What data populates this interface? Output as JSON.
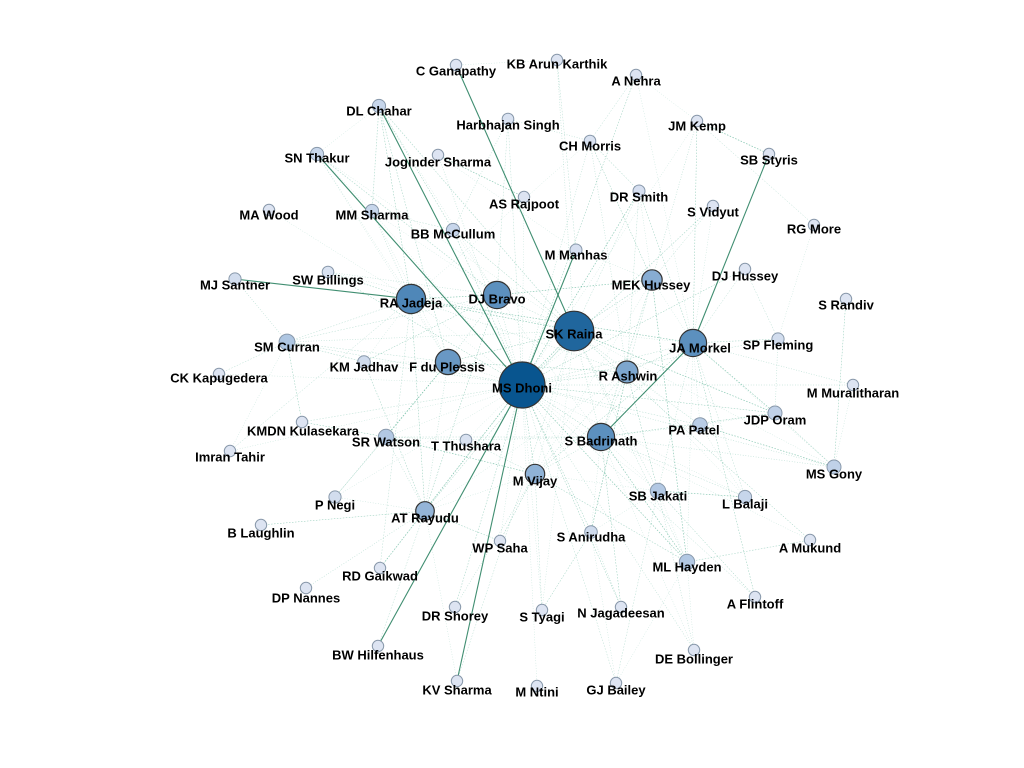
{
  "graph": {
    "colors": {
      "edge": "#2f9e7a",
      "edge_strong": "#1e7a58",
      "node_dark": "#08558f",
      "node_mid": "#4f87b8",
      "node_light": "#9cbadc",
      "node_pale": "#dde4f2",
      "label": "#000000",
      "background": "#ffffff"
    },
    "nodes": [
      {
        "id": "ms-dhoni",
        "label": "MS Dhoni",
        "weight": 1.0
      },
      {
        "id": "sk-raina",
        "label": "SK Raina",
        "weight": 0.85
      },
      {
        "id": "ra-jadeja",
        "label": "RA Jadeja",
        "weight": 0.6
      },
      {
        "id": "ja-morkel",
        "label": "JA Morkel",
        "weight": 0.55
      },
      {
        "id": "dj-bravo",
        "label": "DJ Bravo",
        "weight": 0.55
      },
      {
        "id": "s-badrinath",
        "label": "S Badrinath",
        "weight": 0.55
      },
      {
        "id": "f-du-plessis",
        "label": "F du Plessis",
        "weight": 0.5
      },
      {
        "id": "r-ashwin",
        "label": "R Ashwin",
        "weight": 0.42
      },
      {
        "id": "mek-hussey",
        "label": "MEK Hussey",
        "weight": 0.38
      },
      {
        "id": "m-vijay",
        "label": "M Vijay",
        "weight": 0.35
      },
      {
        "id": "at-rayudu",
        "label": "AT Rayudu",
        "weight": 0.33
      },
      {
        "id": "sm-curran",
        "label": "SM Curran",
        "weight": 0.25
      },
      {
        "id": "sb-jakati",
        "label": "SB Jakati",
        "weight": 0.24
      },
      {
        "id": "ml-hayden",
        "label": "ML Hayden",
        "weight": 0.24
      },
      {
        "id": "sr-watson",
        "label": "SR Watson",
        "weight": 0.24
      },
      {
        "id": "pa-patel",
        "label": "PA Patel",
        "weight": 0.22
      },
      {
        "id": "ms-gony",
        "label": "MS Gony",
        "weight": 0.2
      },
      {
        "id": "jdp-oram",
        "label": "JDP Oram",
        "weight": 0.2
      },
      {
        "id": "l-balaji",
        "label": "L Balaji",
        "weight": 0.18
      },
      {
        "id": "bb-mccullum",
        "label": "BB McCullum",
        "weight": 0.18
      },
      {
        "id": "mm-sharma",
        "label": "MM Sharma",
        "weight": 0.18
      },
      {
        "id": "dl-chahar",
        "label": "DL Chahar",
        "weight": 0.18
      },
      {
        "id": "sn-thakur",
        "label": "SN Thakur",
        "weight": 0.18
      },
      {
        "id": "s-anirudha",
        "label": "S Anirudha",
        "weight": 0.16
      },
      {
        "id": "km-jadhav",
        "label": "KM Jadhav",
        "weight": 0.16
      },
      {
        "id": "sp-fleming",
        "label": "SP Fleming",
        "weight": 0.15
      },
      {
        "id": "p-negi",
        "label": "P Negi",
        "weight": 0.15
      },
      {
        "id": "mj-santner",
        "label": "MJ Santner",
        "weight": 0.15
      },
      {
        "id": "m-manhas",
        "label": "M Manhas",
        "weight": 0.14
      },
      {
        "id": "dr-smith",
        "label": "DR Smith",
        "weight": 0.14
      },
      {
        "id": "t-thushara",
        "label": "T Thushara",
        "weight": 0.13
      },
      {
        "id": "harbhajan-singh",
        "label": "Harbhajan Singh",
        "weight": 0.13
      },
      {
        "id": "ch-morris",
        "label": "CH Morris",
        "weight": 0.13
      },
      {
        "id": "sw-billings",
        "label": "SW Billings",
        "weight": 0.13
      },
      {
        "id": "wp-saha",
        "label": "WP Saha",
        "weight": 0.12
      },
      {
        "id": "dr-shorey",
        "label": "DR Shorey",
        "weight": 0.12
      },
      {
        "id": "s-tyagi",
        "label": "S Tyagi",
        "weight": 0.12
      },
      {
        "id": "n-jagadeesan",
        "label": "N Jagadeesan",
        "weight": 0.12
      },
      {
        "id": "de-bollinger",
        "label": "DE Bollinger",
        "weight": 0.12
      },
      {
        "id": "gj-bailey",
        "label": "GJ Bailey",
        "weight": 0.12
      },
      {
        "id": "m-ntini",
        "label": "M Ntini",
        "weight": 0.12
      },
      {
        "id": "kv-sharma",
        "label": "KV Sharma",
        "weight": 0.12
      },
      {
        "id": "bw-hilfenhaus",
        "label": "BW Hilfenhaus",
        "weight": 0.12
      },
      {
        "id": "dp-nannes",
        "label": "DP Nannes",
        "weight": 0.12
      },
      {
        "id": "rd-gaikwad",
        "label": "RD Gaikwad",
        "weight": 0.12
      },
      {
        "id": "b-laughlin",
        "label": "B Laughlin",
        "weight": 0.12
      },
      {
        "id": "imran-tahir",
        "label": "Imran Tahir",
        "weight": 0.12
      },
      {
        "id": "kmdn-kulasekara",
        "label": "KMDN Kulasekara",
        "weight": 0.12
      },
      {
        "id": "ck-kapugedera",
        "label": "CK Kapugedera",
        "weight": 0.12
      },
      {
        "id": "ma-wood",
        "label": "MA Wood",
        "weight": 0.12
      },
      {
        "id": "joginder-sharma",
        "label": "Joginder Sharma",
        "weight": 0.12
      },
      {
        "id": "c-ganapathy",
        "label": "C Ganapathy",
        "weight": 0.12
      },
      {
        "id": "kb-arun-karthik",
        "label": "KB Arun Karthik",
        "weight": 0.12
      },
      {
        "id": "a-nehra",
        "label": "A Nehra",
        "weight": 0.12
      },
      {
        "id": "jm-kemp",
        "label": "JM Kemp",
        "weight": 0.12
      },
      {
        "id": "sb-styris",
        "label": "SB Styris",
        "weight": 0.12
      },
      {
        "id": "s-vidyut",
        "label": "S Vidyut",
        "weight": 0.12
      },
      {
        "id": "as-rajpoot",
        "label": "AS Rajpoot",
        "weight": 0.12
      },
      {
        "id": "rg-more",
        "label": "RG More",
        "weight": 0.12
      },
      {
        "id": "dj-hussey",
        "label": "DJ Hussey",
        "weight": 0.12
      },
      {
        "id": "s-randiv",
        "label": "S Randiv",
        "weight": 0.12
      },
      {
        "id": "m-muralitharan",
        "label": "M Muralitharan",
        "weight": 0.12
      },
      {
        "id": "a-mukund",
        "label": "A Mukund",
        "weight": 0.12
      },
      {
        "id": "a-flintoff",
        "label": "A Flintoff",
        "weight": 0.12
      }
    ],
    "strong_edges": [
      [
        "ms-dhoni",
        "kv-sharma"
      ],
      [
        "ms-dhoni",
        "bw-hilfenhaus"
      ],
      [
        "ms-dhoni",
        "m-manhas"
      ],
      [
        "ms-dhoni",
        "sn-thakur"
      ],
      [
        "ms-dhoni",
        "dl-chahar"
      ],
      [
        "sk-raina",
        "c-ganapathy"
      ],
      [
        "ja-morkel",
        "sb-styris"
      ],
      [
        "ra-jadeja",
        "mj-santner"
      ],
      [
        "ja-morkel",
        "s-badrinath"
      ]
    ],
    "edges": [
      [
        "ms-dhoni",
        "sk-raina"
      ],
      [
        "ms-dhoni",
        "ra-jadeja"
      ],
      [
        "ms-dhoni",
        "ja-morkel"
      ],
      [
        "ms-dhoni",
        "dj-bravo"
      ],
      [
        "ms-dhoni",
        "s-badrinath"
      ],
      [
        "ms-dhoni",
        "f-du-plessis"
      ],
      [
        "ms-dhoni",
        "r-ashwin"
      ],
      [
        "ms-dhoni",
        "mek-hussey"
      ],
      [
        "ms-dhoni",
        "m-vijay"
      ],
      [
        "ms-dhoni",
        "at-rayudu"
      ],
      [
        "ms-dhoni",
        "sm-curran"
      ],
      [
        "ms-dhoni",
        "sb-jakati"
      ],
      [
        "ms-dhoni",
        "ml-hayden"
      ],
      [
        "ms-dhoni",
        "sr-watson"
      ],
      [
        "ms-dhoni",
        "pa-patel"
      ],
      [
        "ms-dhoni",
        "ms-gony"
      ],
      [
        "ms-dhoni",
        "jdp-oram"
      ],
      [
        "ms-dhoni",
        "l-balaji"
      ],
      [
        "ms-dhoni",
        "bb-mccullum"
      ],
      [
        "ms-dhoni",
        "mm-sharma"
      ],
      [
        "ms-dhoni",
        "s-anirudha"
      ],
      [
        "ms-dhoni",
        "km-jadhav"
      ],
      [
        "ms-dhoni",
        "sp-fleming"
      ],
      [
        "ms-dhoni",
        "p-negi"
      ],
      [
        "ms-dhoni",
        "dr-smith"
      ],
      [
        "ms-dhoni",
        "t-thushara"
      ],
      [
        "ms-dhoni",
        "harbhajan-singh"
      ],
      [
        "ms-dhoni",
        "ch-morris"
      ],
      [
        "ms-dhoni",
        "sw-billings"
      ],
      [
        "ms-dhoni",
        "wp-saha"
      ],
      [
        "ms-dhoni",
        "dr-shorey"
      ],
      [
        "ms-dhoni",
        "s-tyagi"
      ],
      [
        "ms-dhoni",
        "n-jagadeesan"
      ],
      [
        "ms-dhoni",
        "de-bollinger"
      ],
      [
        "ms-dhoni",
        "gj-bailey"
      ],
      [
        "ms-dhoni",
        "m-ntini"
      ],
      [
        "ms-dhoni",
        "rd-gaikwad"
      ],
      [
        "ms-dhoni",
        "imran-tahir"
      ],
      [
        "ms-dhoni",
        "kmdn-kulasekara"
      ],
      [
        "ms-dhoni",
        "joginder-sharma"
      ],
      [
        "ms-dhoni",
        "a-nehra"
      ],
      [
        "ms-dhoni",
        "jm-kemp"
      ],
      [
        "ms-dhoni",
        "s-vidyut"
      ],
      [
        "ms-dhoni",
        "as-rajpoot"
      ],
      [
        "ms-dhoni",
        "dj-hussey"
      ],
      [
        "ms-dhoni",
        "m-muralitharan"
      ],
      [
        "ms-dhoni",
        "a-flintoff"
      ],
      [
        "ms-dhoni",
        "ck-kapugedera"
      ],
      [
        "sk-raina",
        "ra-jadeja"
      ],
      [
        "sk-raina",
        "ja-morkel"
      ],
      [
        "sk-raina",
        "dj-bravo"
      ],
      [
        "sk-raina",
        "s-badrinath"
      ],
      [
        "sk-raina",
        "f-du-plessis"
      ],
      [
        "sk-raina",
        "r-ashwin"
      ],
      [
        "sk-raina",
        "mek-hussey"
      ],
      [
        "sk-raina",
        "m-vijay"
      ],
      [
        "sk-raina",
        "at-rayudu"
      ],
      [
        "sk-raina",
        "sb-jakati"
      ],
      [
        "sk-raina",
        "ml-hayden"
      ],
      [
        "sk-raina",
        "pa-patel"
      ],
      [
        "sk-raina",
        "jdp-oram"
      ],
      [
        "sk-raina",
        "ms-gony"
      ],
      [
        "sk-raina",
        "dr-smith"
      ],
      [
        "sk-raina",
        "kb-arun-karthik"
      ],
      [
        "sk-raina",
        "bb-mccullum"
      ],
      [
        "sk-raina",
        "sw-billings"
      ],
      [
        "sk-raina",
        "dl-chahar"
      ],
      [
        "sk-raina",
        "sn-thakur"
      ],
      [
        "sk-raina",
        "a-mukund"
      ],
      [
        "sk-raina",
        "sm-curran"
      ],
      [
        "sk-raina",
        "kv-sharma"
      ],
      [
        "sk-raina",
        "s-tyagi"
      ],
      [
        "ra-jadeja",
        "dj-bravo"
      ],
      [
        "ra-jadeja",
        "f-du-plessis"
      ],
      [
        "ra-jadeja",
        "sm-curran"
      ],
      [
        "ra-jadeja",
        "mm-sharma"
      ],
      [
        "ra-jadeja",
        "dl-chahar"
      ],
      [
        "ra-jadeja",
        "sn-thakur"
      ],
      [
        "ra-jadeja",
        "sw-billings"
      ],
      [
        "ra-jadeja",
        "km-jadhav"
      ],
      [
        "ra-jadeja",
        "at-rayudu"
      ],
      [
        "ra-jadeja",
        "r-ashwin"
      ],
      [
        "ra-jadeja",
        "imran-tahir"
      ],
      [
        "ra-jadeja",
        "ma-wood"
      ],
      [
        "ra-jadeja",
        "ja-morkel"
      ],
      [
        "ra-jadeja",
        "ch-morris"
      ],
      [
        "ra-jadeja",
        "rd-gaikwad"
      ],
      [
        "dj-bravo",
        "f-du-plessis"
      ],
      [
        "dj-bravo",
        "at-rayudu"
      ],
      [
        "dj-bravo",
        "dl-chahar"
      ],
      [
        "dj-bravo",
        "sn-thakur"
      ],
      [
        "dj-bravo",
        "mm-sharma"
      ],
      [
        "dj-bravo",
        "km-jadhav"
      ],
      [
        "dj-bravo",
        "sw-billings"
      ],
      [
        "dj-bravo",
        "harbhajan-singh"
      ],
      [
        "dj-bravo",
        "bb-mccullum"
      ],
      [
        "dj-bravo",
        "mek-hussey"
      ],
      [
        "dj-bravo",
        "s-badrinath"
      ],
      [
        "dj-bravo",
        "sm-curran"
      ],
      [
        "ja-morkel",
        "s-badrinath"
      ],
      [
        "ja-morkel",
        "r-ashwin"
      ],
      [
        "ja-morkel",
        "mek-hussey"
      ],
      [
        "ja-morkel",
        "sp-fleming"
      ],
      [
        "ja-morkel",
        "ml-hayden"
      ],
      [
        "ja-morkel",
        "m-vijay"
      ],
      [
        "ja-morkel",
        "sb-jakati"
      ],
      [
        "ja-morkel",
        "l-balaji"
      ],
      [
        "ja-morkel",
        "pa-patel"
      ],
      [
        "ja-morkel",
        "jdp-oram"
      ],
      [
        "ja-morkel",
        "ms-gony"
      ],
      [
        "ja-morkel",
        "dj-hussey"
      ],
      [
        "ja-morkel",
        "m-muralitharan"
      ],
      [
        "ja-morkel",
        "a-flintoff"
      ],
      [
        "ja-morkel",
        "s-vidyut"
      ],
      [
        "ja-morkel",
        "dr-smith"
      ],
      [
        "ja-morkel",
        "a-nehra"
      ],
      [
        "ja-morkel",
        "jm-kemp"
      ],
      [
        "s-badrinath",
        "m-vijay"
      ],
      [
        "s-badrinath",
        "r-ashwin"
      ],
      [
        "s-badrinath",
        "sb-jakati"
      ],
      [
        "s-badrinath",
        "ml-hayden"
      ],
      [
        "s-badrinath",
        "pa-patel"
      ],
      [
        "s-badrinath",
        "l-balaji"
      ],
      [
        "s-badrinath",
        "ms-gony"
      ],
      [
        "s-badrinath",
        "jdp-oram"
      ],
      [
        "s-badrinath",
        "s-anirudha"
      ],
      [
        "s-badrinath",
        "mek-hussey"
      ],
      [
        "s-badrinath",
        "a-mukund"
      ],
      [
        "s-badrinath",
        "n-jagadeesan"
      ],
      [
        "s-badrinath",
        "t-thushara"
      ],
      [
        "s-badrinath",
        "sr-watson"
      ],
      [
        "s-badrinath",
        "de-bollinger"
      ],
      [
        "f-du-plessis",
        "sr-watson"
      ],
      [
        "f-du-plessis",
        "km-jadhav"
      ],
      [
        "f-du-plessis",
        "sm-curran"
      ],
      [
        "f-du-plessis",
        "at-rayudu"
      ],
      [
        "f-du-plessis",
        "p-negi"
      ],
      [
        "f-du-plessis",
        "mm-sharma"
      ],
      [
        "f-du-plessis",
        "dl-chahar"
      ],
      [
        "f-du-plessis",
        "sn-thakur"
      ],
      [
        "f-du-plessis",
        "r-ashwin"
      ],
      [
        "r-ashwin",
        "m-vijay"
      ],
      [
        "r-ashwin",
        "mek-hussey"
      ],
      [
        "r-ashwin",
        "at-rayudu"
      ],
      [
        "r-ashwin",
        "s-anirudha"
      ],
      [
        "r-ashwin",
        "pa-patel"
      ],
      [
        "r-ashwin",
        "dr-smith"
      ],
      [
        "r-ashwin",
        "ch-morris"
      ],
      [
        "r-ashwin",
        "sb-jakati"
      ],
      [
        "r-ashwin",
        "l-balaji"
      ],
      [
        "m-vijay",
        "ml-hayden"
      ],
      [
        "m-vijay",
        "sb-jakati"
      ],
      [
        "m-vijay",
        "wp-saha"
      ],
      [
        "m-vijay",
        "dr-shorey"
      ],
      [
        "m-vijay",
        "s-tyagi"
      ],
      [
        "m-vijay",
        "mek-hussey"
      ],
      [
        "m-vijay",
        "sr-watson"
      ],
      [
        "m-vijay",
        "at-rayudu"
      ],
      [
        "m-vijay",
        "t-thushara"
      ],
      [
        "at-rayudu",
        "sr-watson"
      ],
      [
        "at-rayudu",
        "wp-saha"
      ],
      [
        "at-rayudu",
        "p-negi"
      ],
      [
        "at-rayudu",
        "km-jadhav"
      ],
      [
        "at-rayudu",
        "rd-gaikwad"
      ],
      [
        "at-rayudu",
        "b-laughlin"
      ],
      [
        "at-rayudu",
        "dp-nannes"
      ],
      [
        "at-rayudu",
        "bw-hilfenhaus"
      ],
      [
        "at-rayudu",
        "kv-sharma"
      ],
      [
        "mek-hussey",
        "ml-hayden"
      ],
      [
        "mek-hussey",
        "dr-smith"
      ],
      [
        "mek-hussey",
        "s-vidyut"
      ],
      [
        "mek-hussey",
        "jm-kemp"
      ],
      [
        "mek-hussey",
        "ch-morris"
      ],
      [
        "mek-hussey",
        "m-manhas"
      ],
      [
        "sm-curran",
        "km-jadhav"
      ],
      [
        "sm-curran",
        "imran-tahir"
      ],
      [
        "sm-curran",
        "kmdn-kulasekara"
      ],
      [
        "sm-curran",
        "mj-santner"
      ],
      [
        "sm-curran",
        "ck-kapugedera"
      ],
      [
        "sb-jakati",
        "ml-hayden"
      ],
      [
        "sb-jakati",
        "l-balaji"
      ],
      [
        "sb-jakati",
        "s-anirudha"
      ],
      [
        "sb-jakati",
        "gj-bailey"
      ],
      [
        "sb-jakati",
        "de-bollinger"
      ],
      [
        "sb-jakati",
        "a-flintoff"
      ],
      [
        "ml-hayden",
        "gj-bailey"
      ],
      [
        "ml-hayden",
        "a-mukund"
      ],
      [
        "ml-hayden",
        "de-bollinger"
      ],
      [
        "sr-watson",
        "kmdn-kulasekara"
      ],
      [
        "sr-watson",
        "t-thushara"
      ],
      [
        "sr-watson",
        "p-negi"
      ],
      [
        "pa-patel",
        "jdp-oram"
      ],
      [
        "pa-patel",
        "ms-gony"
      ],
      [
        "pa-patel",
        "l-balaji"
      ],
      [
        "bb-mccullum",
        "mm-sharma"
      ],
      [
        "bb-mccullum",
        "harbhajan-singh"
      ],
      [
        "bb-mccullum",
        "dl-chahar"
      ],
      [
        "dl-chahar",
        "sn-thakur"
      ],
      [
        "dl-chahar",
        "mm-sharma"
      ],
      [
        "sn-thakur",
        "mm-sharma"
      ],
      [
        "ch-morris",
        "dr-smith"
      ],
      [
        "ch-morris",
        "harbhajan-singh"
      ],
      [
        "ch-morris",
        "a-nehra"
      ],
      [
        "joginder-sharma",
        "m-manhas"
      ],
      [
        "joginder-sharma",
        "as-rajpoot"
      ],
      [
        "kb-arun-karthik",
        "c-ganapathy"
      ],
      [
        "kb-arun-karthik",
        "m-manhas"
      ],
      [
        "s-anirudha",
        "n-jagadeesan"
      ],
      [
        "s-anirudha",
        "s-tyagi"
      ],
      [
        "s-anirudha",
        "gj-bailey"
      ],
      [
        "ms-gony",
        "jdp-oram"
      ],
      [
        "ms-gony",
        "m-muralitharan"
      ],
      [
        "ms-gony",
        "s-randiv"
      ],
      [
        "sp-fleming",
        "jdp-oram"
      ],
      [
        "sp-fleming",
        "dj-hussey"
      ],
      [
        "sp-fleming",
        "rg-more"
      ],
      [
        "jm-kemp",
        "sb-styris"
      ],
      [
        "jm-kemp",
        "a-nehra"
      ],
      [
        "jm-kemp",
        "rg-more"
      ]
    ]
  }
}
